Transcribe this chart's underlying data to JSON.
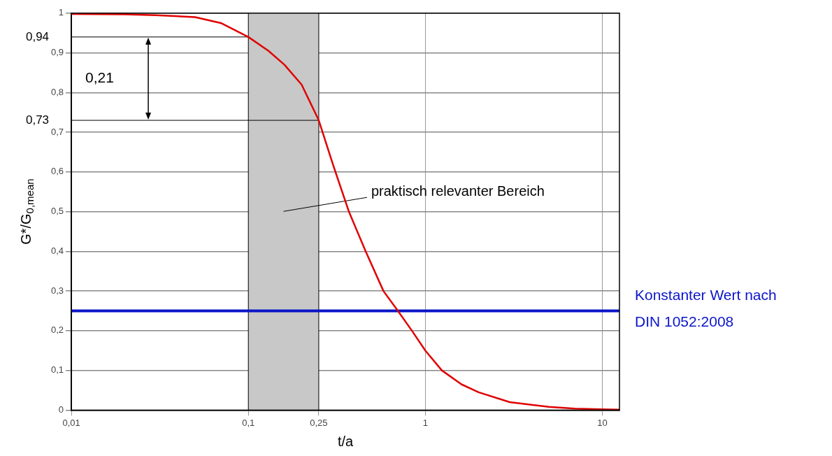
{
  "chart_data": {
    "type": "line",
    "xlabel": "t/a",
    "ylabel": "G*/G$_{0,mean}$",
    "x": [
      0.01,
      0.02,
      0.03,
      0.05,
      0.07,
      0.1,
      0.13,
      0.16,
      0.2,
      0.25,
      0.3,
      0.37,
      0.46,
      0.58,
      0.7,
      0.84,
      1,
      1.24,
      1.6,
      2,
      3,
      5,
      7,
      10,
      12.5
    ],
    "series": [
      {
        "color": "#e00000",
        "values": [
          0.998,
          0.997,
          0.995,
          0.99,
          0.975,
          0.94,
          0.905,
          0.87,
          0.82,
          0.73,
          0.62,
          0.5,
          0.4,
          0.3,
          0.25,
          0.2,
          0.15,
          0.1,
          0.065,
          0.045,
          0.02,
          0.008,
          0.004,
          0.002,
          0.001
        ]
      }
    ],
    "log": "x",
    "xlim": [
      0.01,
      12.5
    ],
    "xticks": [
      {
        "value": 0.01,
        "label": "0,01"
      },
      {
        "value": 0.1,
        "label": "0,1"
      },
      {
        "value": 0.25,
        "label": "0,25"
      },
      1,
      10
    ],
    "ylim": [
      0,
      1
    ],
    "yticks": [
      0,
      {
        "value": 0.1,
        "label": "0,1"
      },
      {
        "value": 0.2,
        "label": "0,2"
      },
      {
        "value": 0.3,
        "label": "0,3"
      },
      {
        "value": 0.4,
        "label": "0,4"
      },
      {
        "value": 0.5,
        "label": "0,5"
      },
      {
        "value": 0.6,
        "label": "0,6"
      },
      {
        "value": 0.7,
        "label": "0,7"
      },
      {
        "value": 0.8,
        "label": "0,8"
      },
      {
        "value": 0.9,
        "label": "0,9"
      },
      1
    ],
    "ref_lines": [
      {
        "axis": "y",
        "value": 0.25,
        "color": "#0a14c8"
      },
      {
        "axis": "y",
        "value": 0.94,
        "label": "0,94",
        "color": "#000000"
      },
      {
        "axis": "y",
        "value": 0.73,
        "label": "0,73",
        "color": "#000000"
      }
    ],
    "bands": [
      {
        "axis": "x",
        "from": 0.1,
        "to": 0.25,
        "label": "praktisch relevanter Bereich",
        "color": "#c8c8c8"
      }
    ],
    "annotations": [
      "0,21",
      "Konstanter Wert nach DIN 1052:2008"
    ],
    "grid": true,
    "legend": false,
    "marker": "none",
    "line_style": "solid"
  }
}
